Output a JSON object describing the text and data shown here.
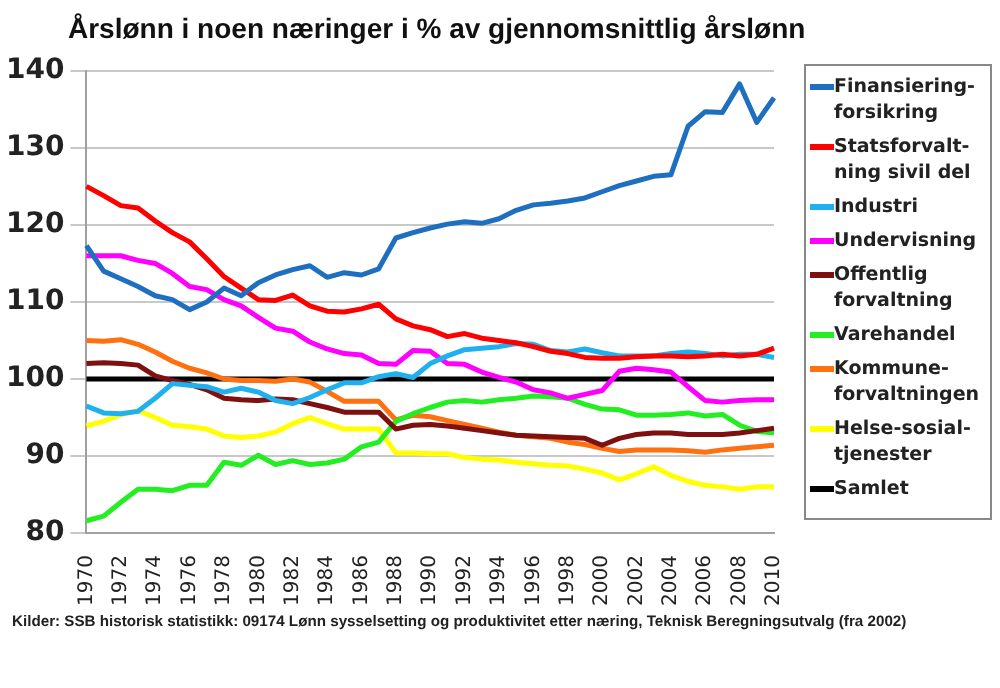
{
  "chart_data": {
    "type": "line",
    "title": "Årslønn i noen næringer i % av gjennomsnittlig årslønn",
    "categories": [
      "1970",
      null,
      "1972",
      null,
      "1974",
      null,
      "1976",
      null,
      "1978",
      null,
      "1980",
      null,
      "1982",
      null,
      "1984",
      null,
      "1986",
      null,
      "1988",
      null,
      "1990",
      null,
      "1992",
      null,
      "1994",
      null,
      "1996",
      null,
      "1998",
      null,
      "2000",
      null,
      "2002",
      null,
      "2004",
      null,
      "2006",
      null,
      "2008",
      null,
      "2010"
    ],
    "series": [
      {
        "name": "Finansiering-forsikring",
        "color": "#1f6fc0",
        "values": [
          117.3,
          114,
          113,
          112,
          110.8,
          110.3,
          109,
          110,
          111.8,
          110.8,
          112.5,
          113.5,
          114.2,
          114.7,
          113.2,
          113.8,
          113.5,
          114.3,
          118.3,
          119,
          119.6,
          120.1,
          120.4,
          120.2,
          120.8,
          121.9,
          122.6,
          122.8,
          123.1,
          123.5,
          124.3,
          125.1,
          125.7,
          126.3,
          126.5,
          132.8,
          134.7,
          134.6,
          138.3,
          133.3,
          136.5
        ]
      },
      {
        "name": "Statsforvalt-ning sivil del",
        "color": "#ff0000",
        "values": [
          125,
          123.8,
          122.5,
          122.2,
          120.5,
          119,
          117.8,
          115.6,
          113.3,
          111.8,
          110.3,
          110.2,
          110.9,
          109.5,
          108.8,
          108.7,
          109.1,
          109.7,
          107.8,
          106.9,
          106.4,
          105.5,
          105.9,
          105.3,
          105,
          104.7,
          104.2,
          103.6,
          103.3,
          102.8,
          102.7,
          102.7,
          102.9,
          103,
          103,
          102.9,
          103,
          103.2,
          103,
          103.2,
          104
        ]
      },
      {
        "name": "Industri",
        "color": "#1fb0f0",
        "values": [
          96.5,
          95.6,
          95.5,
          95.8,
          97.5,
          99.4,
          99.2,
          99,
          98.3,
          98.8,
          98.3,
          97.2,
          96.8,
          97.6,
          98.6,
          99.5,
          99.5,
          100.3,
          100.7,
          100.2,
          102,
          103,
          103.8,
          104,
          104.2,
          104.6,
          104.5,
          103.7,
          103.5,
          103.9,
          103.4,
          103,
          103,
          103,
          103.3,
          103.5,
          103.3,
          103,
          103.2,
          103.2,
          102.8
        ]
      },
      {
        "name": "Undervisning",
        "color": "#ff00ff",
        "values": [
          116,
          116,
          116,
          115.4,
          115,
          113.7,
          112,
          111.6,
          110.3,
          109.5,
          108,
          106.6,
          106.2,
          104.8,
          103.9,
          103.3,
          103.1,
          102,
          101.9,
          103.7,
          103.6,
          102,
          101.9,
          100.9,
          100.2,
          99.6,
          98.6,
          98.2,
          97.5,
          98,
          98.5,
          101,
          101.4,
          101.2,
          100.9,
          99,
          97.2,
          97,
          97.2,
          97.3,
          97.3
        ]
      },
      {
        "name": "Offentlig forvaltning",
        "color": "#7f1010",
        "values": [
          102,
          102.1,
          102,
          101.8,
          100.4,
          99.8,
          99.3,
          98.6,
          97.5,
          97.3,
          97.2,
          97.4,
          97.3,
          96.8,
          96.3,
          95.7,
          95.7,
          95.7,
          93.5,
          94,
          94.1,
          93.9,
          93.6,
          93.3,
          93,
          92.7,
          92.6,
          92.5,
          92.4,
          92.3,
          91.4,
          92.3,
          92.8,
          93,
          93,
          92.8,
          92.8,
          92.8,
          93,
          93.3,
          93.6
        ]
      },
      {
        "name": "Varehandel",
        "color": "#22ee22",
        "values": [
          81.6,
          82.2,
          84,
          85.7,
          85.7,
          85.5,
          86.2,
          86.2,
          89.2,
          88.8,
          90.1,
          88.9,
          89.4,
          88.9,
          89.1,
          89.6,
          91.2,
          91.8,
          94.5,
          95.5,
          96.3,
          97,
          97.2,
          97,
          97.3,
          97.5,
          97.8,
          97.7,
          97.5,
          96.7,
          96.1,
          96,
          95.3,
          95.3,
          95.4,
          95.6,
          95.2,
          95.4,
          94,
          93.2,
          93
        ]
      },
      {
        "name": "Kommune-forvaltningen",
        "color": "#ff7010",
        "values": [
          105,
          104.9,
          105.1,
          104.5,
          103.5,
          102.3,
          101.4,
          100.8,
          100,
          99.8,
          99.8,
          99.7,
          100,
          99.6,
          98.4,
          97.1,
          97.1,
          97.1,
          94.7,
          95.3,
          95.1,
          94.6,
          94.1,
          93.6,
          93.1,
          92.7,
          92.5,
          92.3,
          91.8,
          91.5,
          91,
          90.6,
          90.8,
          90.8,
          90.8,
          90.7,
          90.5,
          90.8,
          91,
          91.2,
          91.4
        ]
      },
      {
        "name": "Helse-sosial-tjenester",
        "color": "#ffff00",
        "values": [
          93.9,
          94.5,
          95.4,
          95.9,
          95,
          94,
          93.8,
          93.5,
          92.6,
          92.4,
          92.6,
          93.1,
          94.2,
          95,
          94.2,
          93.5,
          93.5,
          93.5,
          90.4,
          90.4,
          90.3,
          90.3,
          89.8,
          89.6,
          89.5,
          89.2,
          89,
          88.8,
          88.7,
          88.3,
          87.8,
          86.9,
          87.7,
          88.6,
          87.5,
          86.7,
          86.2,
          86,
          85.7,
          86,
          86
        ]
      },
      {
        "name": "Samlet",
        "color": "#000000",
        "values": [
          100,
          100,
          100,
          100,
          100,
          100,
          100,
          100,
          100,
          100,
          100,
          100,
          100,
          100,
          100,
          100,
          100,
          100,
          100,
          100,
          100,
          100,
          100,
          100,
          100,
          100,
          100,
          100,
          100,
          100,
          100,
          100,
          100,
          100,
          100,
          100,
          100,
          100,
          100,
          100,
          100
        ]
      }
    ],
    "ylim": [
      80,
      140
    ],
    "yticks": [
      80,
      90,
      100,
      110,
      120,
      130,
      140
    ],
    "grid": "y",
    "legend": "right",
    "marker": "none",
    "line_style": "solid",
    "annotations": [
      "Kilder: SSB historisk statistikk: 09174 Lønn sysselsetting og produktivitet etter næring, Teknisk Beregningsutvalg (fra 2002)"
    ]
  }
}
